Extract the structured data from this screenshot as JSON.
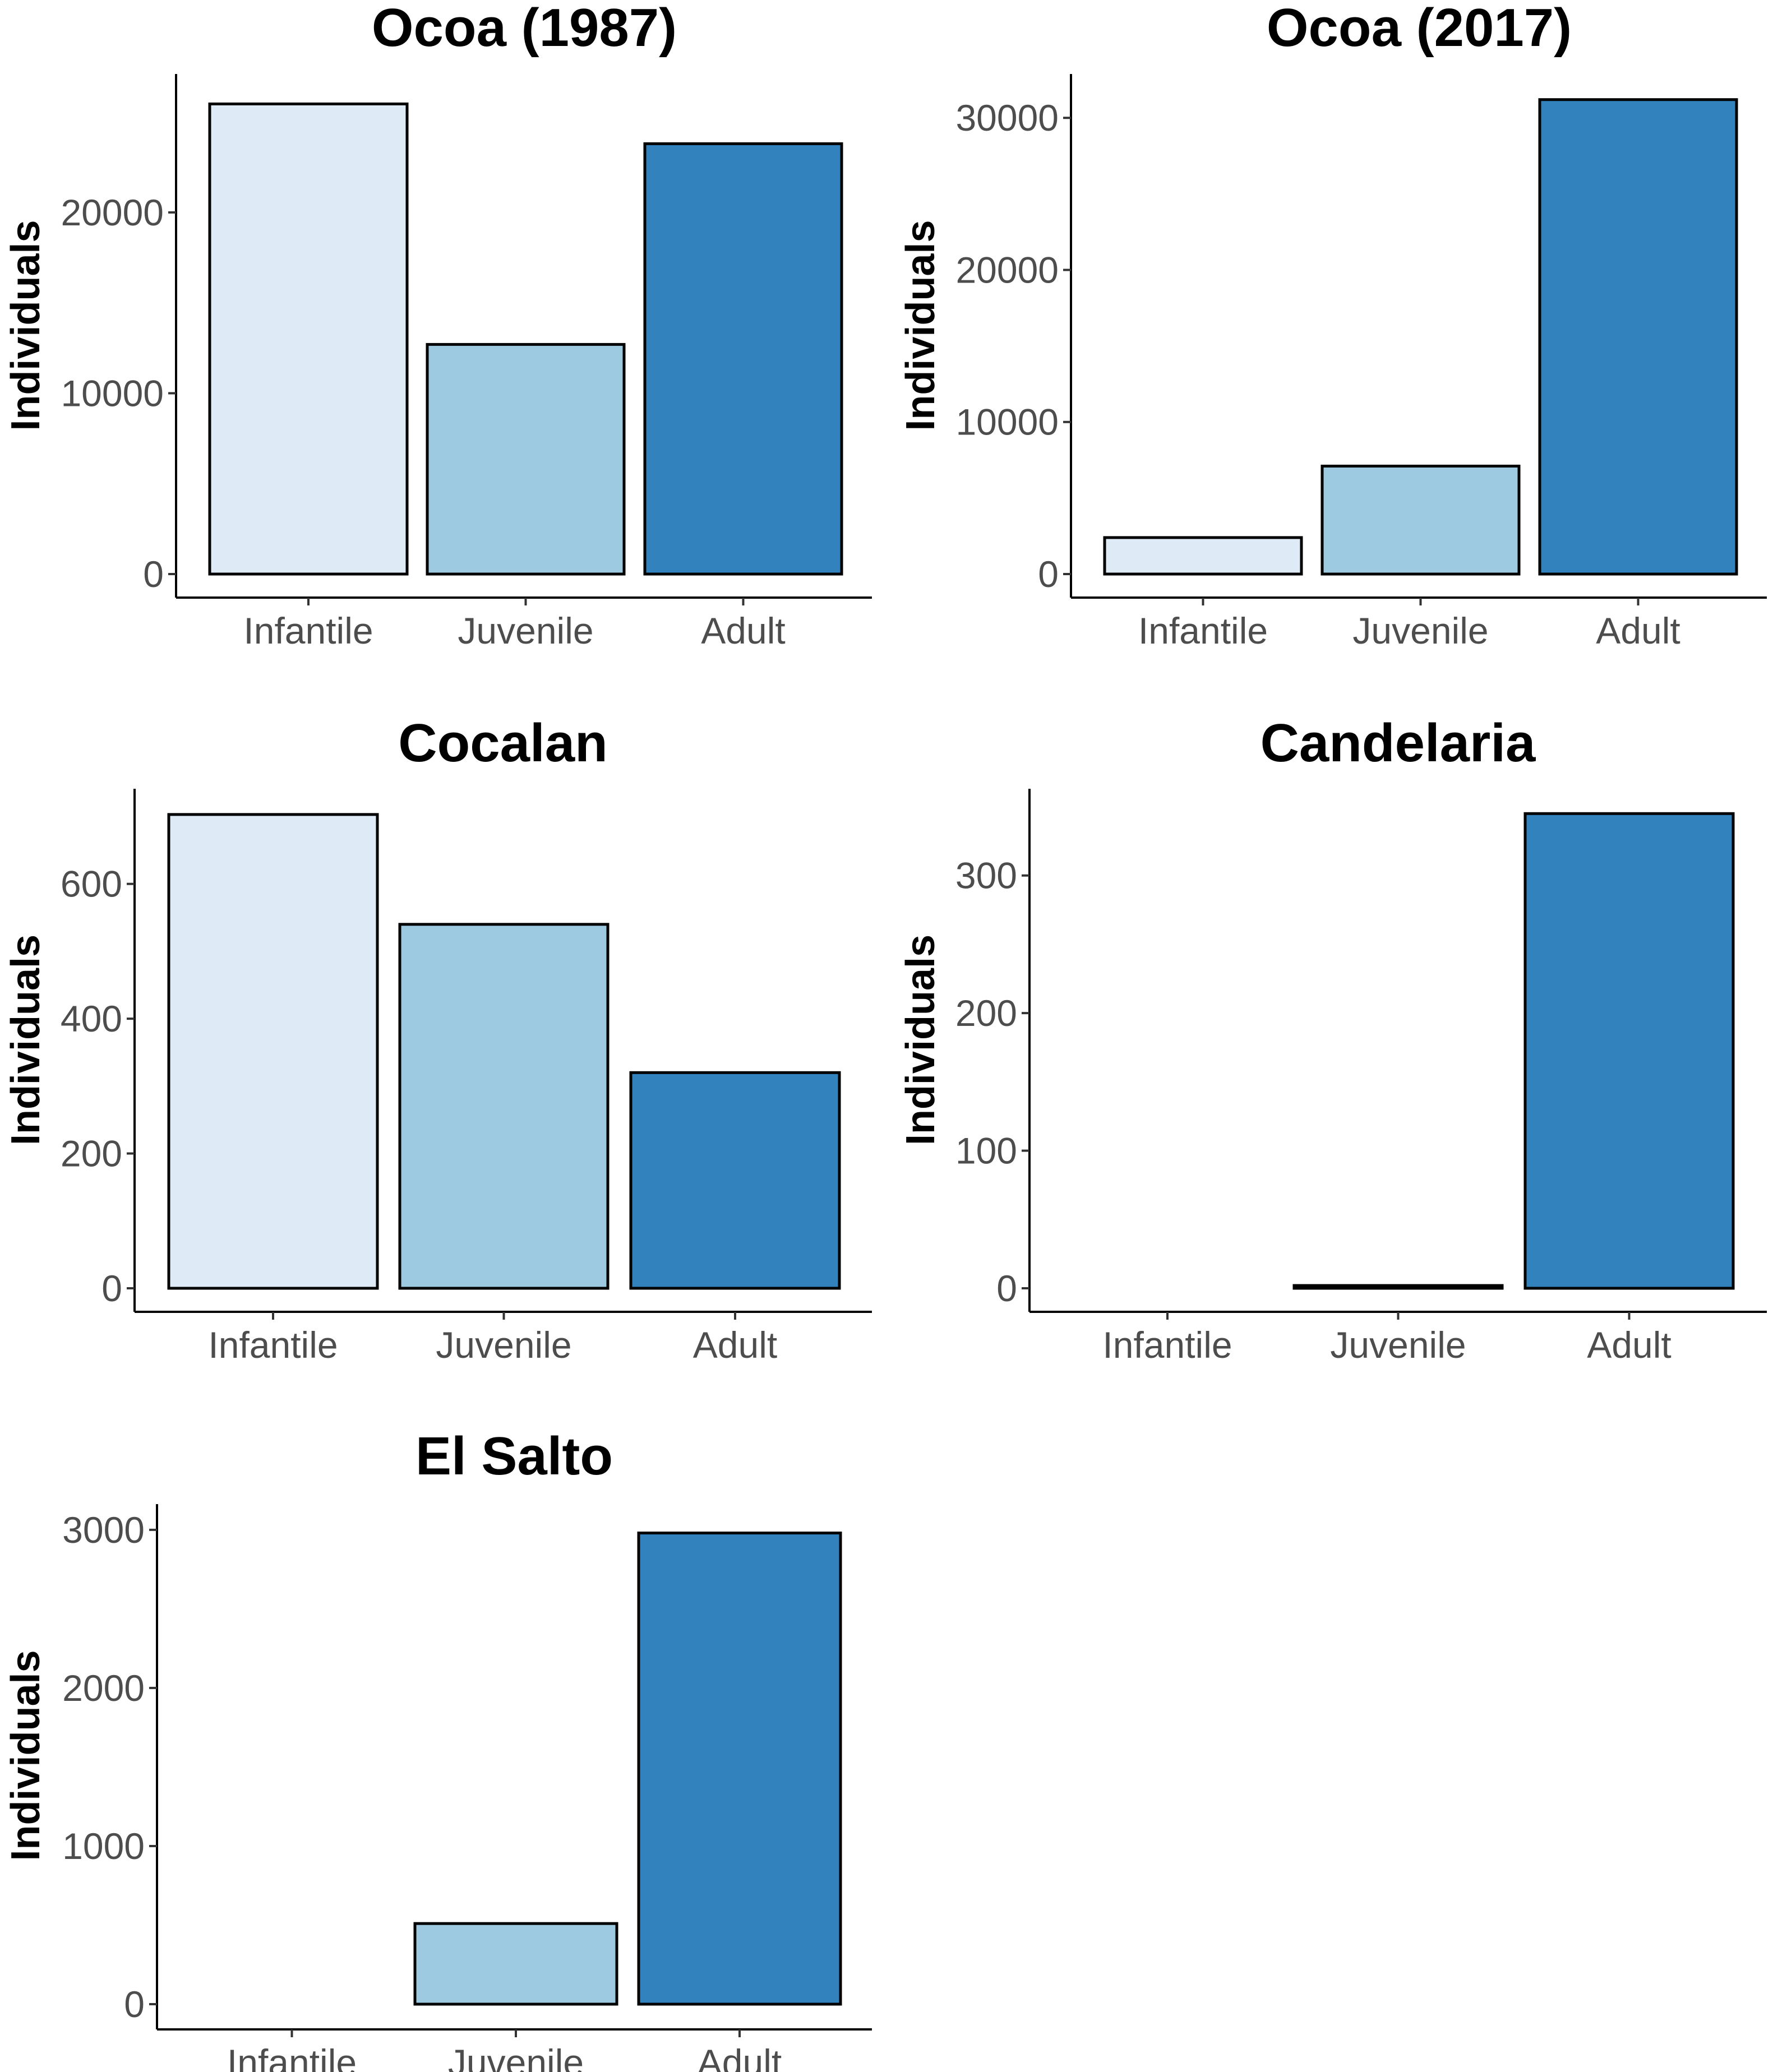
{
  "chart_data": [
    {
      "type": "bar",
      "title": "Ocoa (1987)",
      "xlabel": "",
      "ylabel": "Individuals",
      "categories": [
        "Infantile",
        "Juvenile",
        "Adult"
      ],
      "values": [
        26000,
        12700,
        23800
      ],
      "ylim": [
        0,
        27500
      ],
      "yticks": [
        0,
        10000,
        20000
      ],
      "colors": [
        "#deebf7",
        "#9ecae1",
        "#3182bd"
      ]
    },
    {
      "type": "bar",
      "title": "Ocoa (2017)",
      "xlabel": "",
      "ylabel": "Individuals",
      "categories": [
        "Infantile",
        "Juvenile",
        "Adult"
      ],
      "values": [
        2400,
        7100,
        31200
      ],
      "ylim": [
        0,
        32700
      ],
      "yticks": [
        0,
        10000,
        20000,
        30000
      ],
      "colors": [
        "#deebf7",
        "#9ecae1",
        "#3182bd"
      ]
    },
    {
      "type": "bar",
      "title": "Cocalan",
      "xlabel": "",
      "ylabel": "Individuals",
      "categories": [
        "Infantile",
        "Juvenile",
        "Adult"
      ],
      "values": [
        703,
        540,
        320
      ],
      "ylim": [
        0,
        737
      ],
      "yticks": [
        0,
        200,
        400,
        600
      ],
      "colors": [
        "#deebf7",
        "#9ecae1",
        "#3182bd"
      ]
    },
    {
      "type": "bar",
      "title": "Candelaria",
      "xlabel": "",
      "ylabel": "Individuals",
      "categories": [
        "Infantile",
        "Juvenile",
        "Adult"
      ],
      "values": [
        0,
        2,
        345
      ],
      "ylim": [
        0,
        361
      ],
      "yticks": [
        0,
        100,
        200,
        300
      ],
      "colors": [
        "#deebf7",
        "#9ecae1",
        "#3182bd"
      ]
    },
    {
      "type": "bar",
      "title": "El Salto",
      "xlabel": "",
      "ylabel": "Individuals",
      "categories": [
        "Infantile",
        "Juvenile",
        "Adult"
      ],
      "values": [
        0,
        510,
        2980
      ],
      "ylim": [
        0,
        3145
      ],
      "yticks": [
        0,
        1000,
        2000,
        3000
      ],
      "colors": [
        "#deebf7",
        "#9ecae1",
        "#3182bd"
      ]
    }
  ]
}
